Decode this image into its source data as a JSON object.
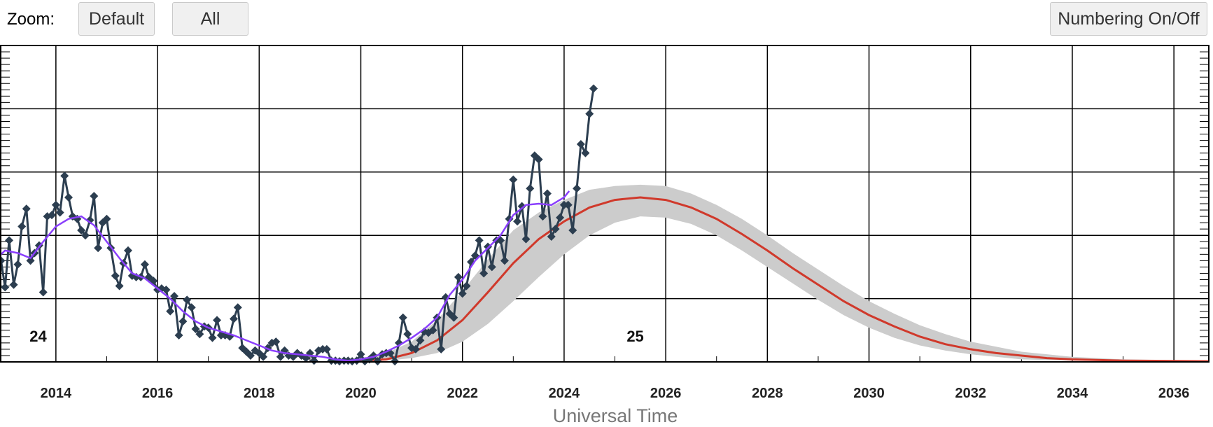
{
  "toolbar": {
    "zoom_label": "Zoom:",
    "default_label": "Default",
    "all_label": "All",
    "numbering_label": "Numbering On/Off"
  },
  "colors": {
    "observed": "#2c3e50",
    "smoothed": "#8a3ffc",
    "predicted": "#d0392b",
    "band": "#cccccc",
    "grid": "#000000"
  },
  "chart_data": {
    "type": "line",
    "title": "",
    "xlabel": "Universal Time",
    "ylabel": "",
    "xlim": [
      2012.9,
      2036.7
    ],
    "ylim": [
      0,
      250
    ],
    "x_tick_labels": [
      "2014",
      "2016",
      "2018",
      "2020",
      "2022",
      "2024",
      "2026",
      "2028",
      "2030",
      "2032",
      "2034",
      "2036"
    ],
    "x_ticks": [
      2014,
      2016,
      2018,
      2020,
      2022,
      2024,
      2026,
      2028,
      2030,
      2032,
      2034,
      2036
    ],
    "y_gridlines": [
      50,
      100,
      150,
      200
    ],
    "grid": true,
    "annotations": [
      {
        "text": "24",
        "x": 2013.65,
        "y": 15
      },
      {
        "text": "25",
        "x": 2025.4,
        "y": 15
      }
    ],
    "series": [
      {
        "key": "observed",
        "style": "line+diamond",
        "points": [
          [
            2012.92,
            80
          ],
          [
            2013.0,
            59
          ],
          [
            2013.08,
            96
          ],
          [
            2013.17,
            61
          ],
          [
            2013.25,
            77
          ],
          [
            2013.33,
            107
          ],
          [
            2013.42,
            121
          ],
          [
            2013.5,
            80
          ],
          [
            2013.58,
            86
          ],
          [
            2013.67,
            92
          ],
          [
            2013.75,
            55
          ],
          [
            2013.83,
            115
          ],
          [
            2013.92,
            116
          ],
          [
            2014.0,
            124
          ],
          [
            2014.08,
            118
          ],
          [
            2014.17,
            147
          ],
          [
            2014.25,
            130
          ],
          [
            2014.33,
            115
          ],
          [
            2014.42,
            113
          ],
          [
            2014.5,
            104
          ],
          [
            2014.58,
            100
          ],
          [
            2014.67,
            112
          ],
          [
            2014.75,
            131
          ],
          [
            2014.83,
            90
          ],
          [
            2014.92,
            110
          ],
          [
            2015.0,
            113
          ],
          [
            2015.08,
            90
          ],
          [
            2015.17,
            68
          ],
          [
            2015.25,
            60
          ],
          [
            2015.33,
            78
          ],
          [
            2015.42,
            88
          ],
          [
            2015.5,
            68
          ],
          [
            2015.58,
            67
          ],
          [
            2015.67,
            67
          ],
          [
            2015.75,
            77
          ],
          [
            2015.83,
            67
          ],
          [
            2015.92,
            64
          ],
          [
            2016.0,
            57
          ],
          [
            2016.08,
            58
          ],
          [
            2016.17,
            57
          ],
          [
            2016.25,
            40
          ],
          [
            2016.33,
            52
          ],
          [
            2016.42,
            21
          ],
          [
            2016.5,
            32
          ],
          [
            2016.58,
            49
          ],
          [
            2016.67,
            43
          ],
          [
            2016.75,
            26
          ],
          [
            2016.83,
            22
          ],
          [
            2016.92,
            28
          ],
          [
            2017.0,
            27
          ],
          [
            2017.08,
            19
          ],
          [
            2017.17,
            33
          ],
          [
            2017.25,
            21
          ],
          [
            2017.33,
            21
          ],
          [
            2017.42,
            20
          ],
          [
            2017.5,
            34
          ],
          [
            2017.58,
            43
          ],
          [
            2017.67,
            11
          ],
          [
            2017.75,
            8
          ],
          [
            2017.83,
            5
          ],
          [
            2017.92,
            9
          ],
          [
            2018.0,
            7
          ],
          [
            2018.08,
            4
          ],
          [
            2018.17,
            11
          ],
          [
            2018.25,
            15
          ],
          [
            2018.33,
            16
          ],
          [
            2018.42,
            4
          ],
          [
            2018.5,
            9
          ],
          [
            2018.58,
            5
          ],
          [
            2018.67,
            4
          ],
          [
            2018.75,
            7
          ],
          [
            2018.83,
            5
          ],
          [
            2018.92,
            3
          ],
          [
            2019.0,
            7
          ],
          [
            2019.08,
            1
          ],
          [
            2019.17,
            9
          ],
          [
            2019.25,
            10
          ],
          [
            2019.33,
            10
          ],
          [
            2019.42,
            1
          ],
          [
            2019.5,
            1
          ],
          [
            2019.58,
            0.5
          ],
          [
            2019.67,
            1
          ],
          [
            2019.75,
            1
          ],
          [
            2019.83,
            0.5
          ],
          [
            2019.92,
            1
          ],
          [
            2020.0,
            6
          ],
          [
            2020.08,
            0.5
          ],
          [
            2020.17,
            2
          ],
          [
            2020.25,
            5
          ],
          [
            2020.33,
            0.5
          ],
          [
            2020.42,
            6
          ],
          [
            2020.5,
            7
          ],
          [
            2020.58,
            7
          ],
          [
            2020.67,
            0.5
          ],
          [
            2020.75,
            15
          ],
          [
            2020.83,
            35
          ],
          [
            2020.92,
            22
          ],
          [
            2021.0,
            11
          ],
          [
            2021.08,
            10
          ],
          [
            2021.17,
            17
          ],
          [
            2021.25,
            24
          ],
          [
            2021.33,
            23
          ],
          [
            2021.42,
            25
          ],
          [
            2021.5,
            35
          ],
          [
            2021.58,
            10
          ],
          [
            2021.67,
            51
          ],
          [
            2021.75,
            38
          ],
          [
            2021.83,
            35
          ],
          [
            2021.92,
            67
          ],
          [
            2022.0,
            54
          ],
          [
            2022.08,
            60
          ],
          [
            2022.17,
            79
          ],
          [
            2022.25,
            84
          ],
          [
            2022.33,
            96
          ],
          [
            2022.42,
            70
          ],
          [
            2022.5,
            91
          ],
          [
            2022.58,
            75
          ],
          [
            2022.67,
            96
          ],
          [
            2022.75,
            96
          ],
          [
            2022.83,
            80
          ],
          [
            2022.92,
            113
          ],
          [
            2023.0,
            144
          ],
          [
            2023.08,
            111
          ],
          [
            2023.17,
            123
          ],
          [
            2023.25,
            97
          ],
          [
            2023.33,
            137
          ],
          [
            2023.42,
            163
          ],
          [
            2023.5,
            160
          ],
          [
            2023.58,
            115
          ],
          [
            2023.67,
            133
          ],
          [
            2023.75,
            99
          ],
          [
            2023.83,
            105
          ],
          [
            2023.92,
            114
          ],
          [
            2024.0,
            124
          ],
          [
            2024.08,
            124
          ],
          [
            2024.17,
            104
          ],
          [
            2024.25,
            137
          ],
          [
            2024.33,
            172
          ],
          [
            2024.42,
            165
          ],
          [
            2024.5,
            196
          ],
          [
            2024.58,
            216
          ]
        ]
      },
      {
        "key": "smoothed",
        "style": "line",
        "points": [
          [
            2012.92,
            85
          ],
          [
            2013.0,
            88
          ],
          [
            2013.25,
            86
          ],
          [
            2013.5,
            82
          ],
          [
            2013.75,
            95
          ],
          [
            2014.0,
            107
          ],
          [
            2014.25,
            113
          ],
          [
            2014.5,
            115
          ],
          [
            2014.75,
            108
          ],
          [
            2015.0,
            95
          ],
          [
            2015.25,
            82
          ],
          [
            2015.5,
            70
          ],
          [
            2015.75,
            66
          ],
          [
            2016.0,
            58
          ],
          [
            2016.25,
            50
          ],
          [
            2016.5,
            40
          ],
          [
            2016.75,
            32
          ],
          [
            2017.0,
            27
          ],
          [
            2017.25,
            24
          ],
          [
            2017.5,
            21
          ],
          [
            2017.75,
            17
          ],
          [
            2018.0,
            13
          ],
          [
            2018.25,
            9
          ],
          [
            2018.5,
            7
          ],
          [
            2018.75,
            6
          ],
          [
            2019.0,
            5
          ],
          [
            2019.25,
            4
          ],
          [
            2019.5,
            2
          ],
          [
            2019.75,
            1
          ],
          [
            2020.0,
            2
          ],
          [
            2020.25,
            4
          ],
          [
            2020.5,
            8
          ],
          [
            2020.75,
            13
          ],
          [
            2021.0,
            19
          ],
          [
            2021.25,
            26
          ],
          [
            2021.5,
            35
          ],
          [
            2021.75,
            53
          ],
          [
            2022.0,
            65
          ],
          [
            2022.25,
            80
          ],
          [
            2022.5,
            90
          ],
          [
            2022.75,
            100
          ],
          [
            2023.0,
            116
          ],
          [
            2023.25,
            124
          ],
          [
            2023.5,
            125
          ],
          [
            2023.75,
            124
          ],
          [
            2024.0,
            130
          ],
          [
            2024.1,
            135
          ]
        ]
      },
      {
        "key": "predicted",
        "style": "line",
        "points": [
          [
            2020.0,
            1
          ],
          [
            2020.5,
            2
          ],
          [
            2021.0,
            7
          ],
          [
            2021.5,
            17
          ],
          [
            2022.0,
            33
          ],
          [
            2022.5,
            55
          ],
          [
            2023.0,
            78
          ],
          [
            2023.5,
            97
          ],
          [
            2024.0,
            111
          ],
          [
            2024.5,
            122
          ],
          [
            2025.0,
            128
          ],
          [
            2025.5,
            130
          ],
          [
            2026.0,
            128
          ],
          [
            2026.5,
            122
          ],
          [
            2027.0,
            113
          ],
          [
            2027.5,
            101
          ],
          [
            2028.0,
            88
          ],
          [
            2028.5,
            74
          ],
          [
            2029.0,
            61
          ],
          [
            2029.5,
            48
          ],
          [
            2030.0,
            37
          ],
          [
            2030.5,
            28
          ],
          [
            2031.0,
            20
          ],
          [
            2031.5,
            14
          ],
          [
            2032.0,
            10
          ],
          [
            2032.5,
            7
          ],
          [
            2033.0,
            5
          ],
          [
            2033.5,
            3
          ],
          [
            2034.0,
            2
          ],
          [
            2035.0,
            1
          ],
          [
            2036.7,
            0.5
          ]
        ]
      },
      {
        "key": "predicted-range",
        "style": "band",
        "upper": [
          [
            2020.0,
            3
          ],
          [
            2020.5,
            7
          ],
          [
            2021.0,
            16
          ],
          [
            2021.5,
            33
          ],
          [
            2022.0,
            56
          ],
          [
            2022.5,
            81
          ],
          [
            2023.0,
            104
          ],
          [
            2023.5,
            118
          ],
          [
            2024.0,
            128
          ],
          [
            2024.5,
            136
          ],
          [
            2025.0,
            139
          ],
          [
            2025.5,
            140
          ],
          [
            2026.0,
            139
          ],
          [
            2026.5,
            133
          ],
          [
            2027.0,
            124
          ],
          [
            2027.5,
            113
          ],
          [
            2028.0,
            100
          ],
          [
            2028.5,
            86
          ],
          [
            2029.0,
            73
          ],
          [
            2029.5,
            60
          ],
          [
            2030.0,
            48
          ],
          [
            2030.5,
            38
          ],
          [
            2031.0,
            29
          ],
          [
            2031.5,
            22
          ],
          [
            2032.0,
            16
          ],
          [
            2032.5,
            12
          ],
          [
            2033.0,
            8
          ],
          [
            2033.5,
            6
          ],
          [
            2034.0,
            4
          ],
          [
            2035.0,
            2
          ],
          [
            2036.7,
            1
          ]
        ],
        "lower": [
          [
            2020.0,
            0
          ],
          [
            2020.5,
            1
          ],
          [
            2021.0,
            3
          ],
          [
            2021.5,
            7
          ],
          [
            2022.0,
            16
          ],
          [
            2022.5,
            30
          ],
          [
            2023.0,
            48
          ],
          [
            2023.5,
            67
          ],
          [
            2024.0,
            85
          ],
          [
            2024.5,
            100
          ],
          [
            2025.0,
            110
          ],
          [
            2025.5,
            115
          ],
          [
            2026.0,
            114
          ],
          [
            2026.5,
            109
          ],
          [
            2027.0,
            100
          ],
          [
            2027.5,
            88
          ],
          [
            2028.0,
            75
          ],
          [
            2028.5,
            62
          ],
          [
            2029.0,
            49
          ],
          [
            2029.5,
            37
          ],
          [
            2030.0,
            27
          ],
          [
            2030.5,
            19
          ],
          [
            2031.0,
            13
          ],
          [
            2031.5,
            9
          ],
          [
            2032.0,
            6
          ],
          [
            2032.5,
            4
          ],
          [
            2033.0,
            2
          ],
          [
            2033.5,
            1.5
          ],
          [
            2034.0,
            1
          ],
          [
            2035.0,
            0.5
          ],
          [
            2036.7,
            0
          ]
        ]
      }
    ]
  }
}
